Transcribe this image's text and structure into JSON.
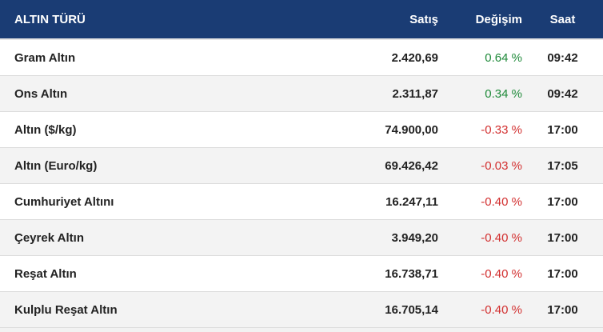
{
  "table": {
    "header": [
      "ALTIN TÜRÜ",
      "Satış",
      "Değişim",
      "Saat"
    ],
    "rows": [
      [
        "Gram Altın",
        "2.420,69",
        "0.64 %",
        "09:42"
      ],
      [
        "Ons Altın",
        "2.311,87",
        "0.34 %",
        "09:42"
      ],
      [
        "Altın ($/kg)",
        "74.900,00",
        "-0.33 %",
        "17:00"
      ],
      [
        "Altın (Euro/kg)",
        "69.426,42",
        "-0.03 %",
        "17:05"
      ],
      [
        "Cumhuriyet Altını",
        "16.247,11",
        "-0.40 %",
        "17:00"
      ],
      [
        "Çeyrek Altın",
        "3.949,20",
        "-0.40 %",
        "17:00"
      ],
      [
        "Reşat Altın",
        "16.738,71",
        "-0.40 %",
        "17:00"
      ],
      [
        "Kulplu Reşat Altın",
        "16.705,14",
        "-0.40 %",
        "17:00"
      ]
    ]
  }
}
